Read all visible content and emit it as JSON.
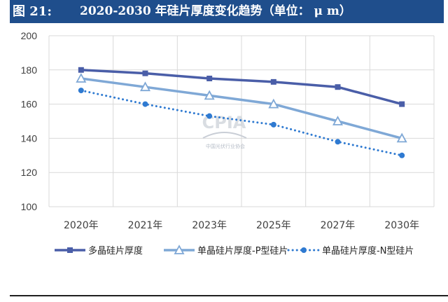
{
  "header": {
    "figure_label": "图 21:",
    "figure_title": "2020-2030 年硅片厚度变化趋势（单位： μ m）"
  },
  "watermark": {
    "logo_text": "CPIA",
    "org_name": "中国光伏行业协会"
  },
  "colors": {
    "title_bg": "#1f4e8c",
    "series_dark": "#4a5ea8",
    "series_light": "#7fa8d6",
    "series_dotted": "#2f7ad1",
    "grid": "#d9d9d9",
    "axis_text": "#404040"
  },
  "chart_data": {
    "type": "line",
    "categories": [
      "2020年",
      "2021年",
      "2023年",
      "2025年",
      "2027年",
      "2030年"
    ],
    "ylim": [
      100,
      200
    ],
    "yticks": [
      "200",
      "180",
      "160",
      "140",
      "120",
      "100"
    ],
    "grid": true,
    "legend_position": "bottom",
    "series": [
      {
        "name": "多晶硅片厚度",
        "marker": "square",
        "line": "solid",
        "color": "#4a5ea8",
        "values": [
          180,
          178,
          175,
          173,
          170,
          160
        ]
      },
      {
        "name": "单晶硅片厚度-P型硅片",
        "marker": "triangle",
        "line": "solid",
        "color": "#7fa8d6",
        "values": [
          175,
          170,
          165,
          160,
          150,
          140
        ]
      },
      {
        "name": "单晶硅片厚度-N型硅片",
        "marker": "circle",
        "line": "dotted",
        "color": "#2f7ad1",
        "values": [
          168,
          160,
          153,
          148,
          138,
          130
        ]
      }
    ]
  }
}
